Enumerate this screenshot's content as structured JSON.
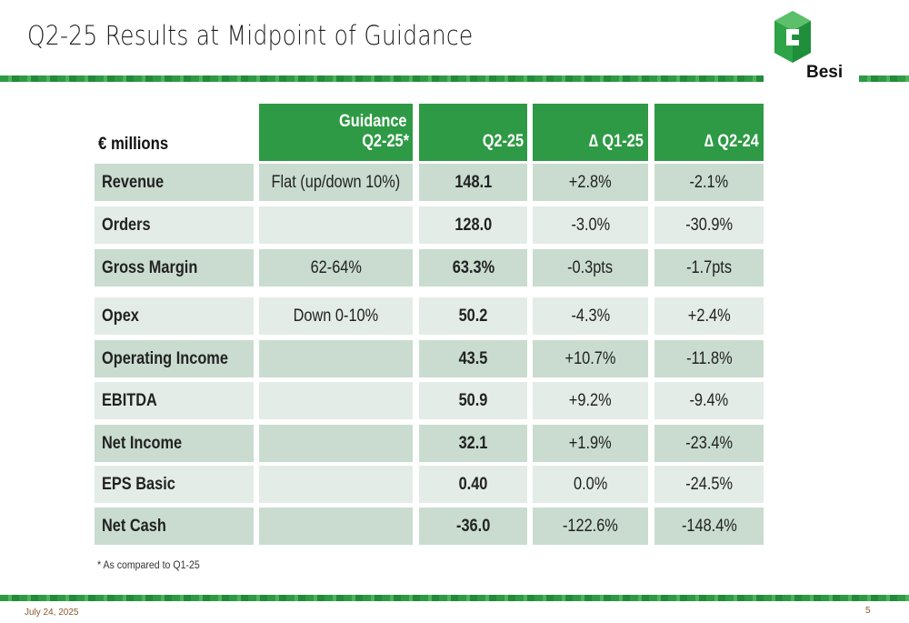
{
  "slide": {
    "title": "Q2-25 Results at Midpoint of Guidance",
    "brand": "Besi",
    "footnote": "*  As compared to Q1-25",
    "date": "July 24, 2025",
    "page_number": "5"
  },
  "table": {
    "unit_label": "€  millions",
    "headers": {
      "guidance_line1": "Guidance",
      "guidance_line2": "Q2-25*",
      "q2_25": "Q2-25",
      "d_q1_25": "∆ Q1-25",
      "d_q2_24": "∆ Q2-24"
    },
    "rows": [
      {
        "label": "Revenue",
        "guidance": "Flat (up/down 10%)",
        "q2_25": "148.1",
        "d_q1_25": "+2.8%",
        "d_q2_24": "-2.1%"
      },
      {
        "label": "Orders",
        "guidance": "",
        "q2_25": "128.0",
        "d_q1_25": "-3.0%",
        "d_q2_24": "-30.9%"
      },
      {
        "label": "Gross Margin",
        "guidance": "62-64%",
        "q2_25": "63.3%",
        "d_q1_25": "-0.3pts",
        "d_q2_24": "-1.7pts"
      },
      {
        "label": "Opex",
        "guidance": "Down 0-10%",
        "q2_25": "50.2",
        "d_q1_25": "-4.3%",
        "d_q2_24": "+2.4%"
      },
      {
        "label": "Operating Income",
        "guidance": "",
        "q2_25": "43.5",
        "d_q1_25": "+10.7%",
        "d_q2_24": "-11.8%"
      },
      {
        "label": "EBITDA",
        "guidance": "",
        "q2_25": "50.9",
        "d_q1_25": "+9.2%",
        "d_q2_24": "-9.4%"
      },
      {
        "label": "Net Income",
        "guidance": "",
        "q2_25": "32.1",
        "d_q1_25": "+1.9%",
        "d_q2_24": "-23.4%"
      },
      {
        "label": "EPS Basic",
        "guidance": "",
        "q2_25": "0.40",
        "d_q1_25": "0.0%",
        "d_q2_24": "-24.5%"
      },
      {
        "label": "Net Cash",
        "guidance": "",
        "q2_25": "-36.0",
        "d_q1_25": "-122.6%",
        "d_q2_24": "-148.4%"
      }
    ]
  },
  "colors": {
    "header_green": "#2e9a45",
    "row_dark": "#c9dccf",
    "row_light": "#e3ece6"
  }
}
